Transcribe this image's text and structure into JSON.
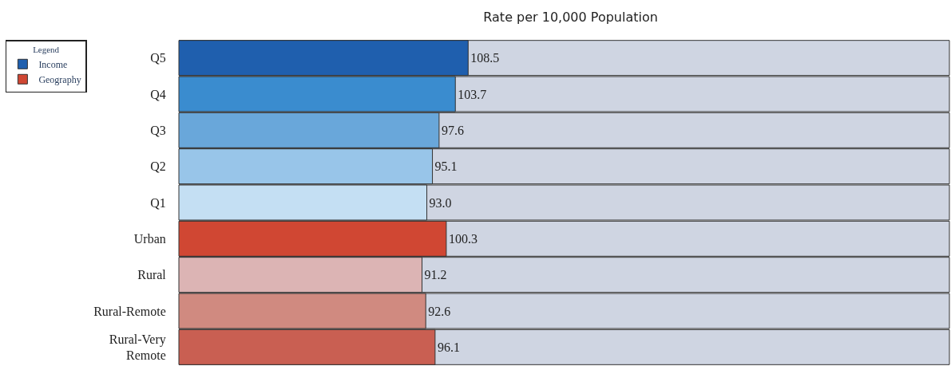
{
  "chart_data": {
    "type": "bar",
    "orientation": "horizontal",
    "title": "Rate per 10,000 Population",
    "legend_title": "Legend",
    "categories": [
      "Q5",
      "Q4",
      "Q3",
      "Q2",
      "Q1",
      "Urban",
      "Rural",
      "Rural-Remote",
      "Rural-Very Remote"
    ],
    "series": [
      {
        "name": "Income",
        "color": "#1f5fae",
        "colors": [
          "#1f5fae",
          "#3a8ccf",
          "#69a7da",
          "#98c5e9",
          "#c4dff3",
          null,
          null,
          null,
          null
        ],
        "values": [
          108.5,
          103.7,
          97.6,
          95.1,
          93.0,
          null,
          null,
          null,
          null
        ],
        "value_labels": [
          "108.5",
          "103.7",
          "97.6",
          "95.1",
          "93.0",
          null,
          null,
          null,
          null
        ]
      },
      {
        "name": "Geography",
        "color": "#d04733",
        "colors": [
          null,
          null,
          null,
          null,
          null,
          "#d04733",
          "#dcb4b4",
          "#d08a80",
          "#c95f52"
        ],
        "values": [
          null,
          null,
          null,
          null,
          null,
          100.3,
          91.2,
          92.6,
          96.1
        ],
        "value_labels": [
          null,
          null,
          null,
          null,
          null,
          "100.3",
          "91.2",
          "92.6",
          "96.1"
        ]
      }
    ],
    "xlim": [
      0,
      289
    ],
    "tick_labels": "y",
    "grid": false,
    "legend": "top left"
  }
}
